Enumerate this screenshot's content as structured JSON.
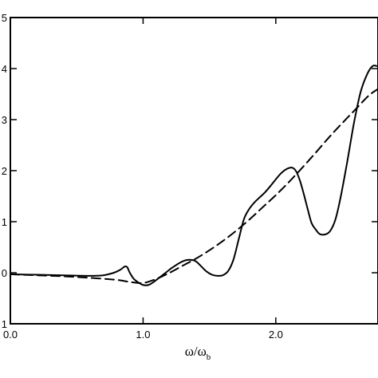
{
  "chart_data": {
    "type": "line",
    "title": "",
    "xlabel": "ω/ω",
    "xlabel_subscript": "b",
    "ylabel": "",
    "xlim": [
      0.0,
      2.77
    ],
    "ylim": [
      -1.0,
      5.0
    ],
    "x_ticks": [
      {
        "value": 0.0,
        "label": "0.0"
      },
      {
        "value": 1.0,
        "label": "1.0"
      },
      {
        "value": 2.0,
        "label": "2.0"
      }
    ],
    "y_ticks": [
      {
        "value": 5,
        "label": "5"
      },
      {
        "value": 4,
        "label": "4"
      },
      {
        "value": 3,
        "label": "3"
      },
      {
        "value": 2,
        "label": "2"
      },
      {
        "value": 1,
        "label": "1"
      },
      {
        "value": 0,
        "label": "0"
      },
      {
        "value": -1,
        "label": "1"
      }
    ],
    "grid": false,
    "legend": "none",
    "series": [
      {
        "style": "solid",
        "color": "#000000",
        "x": [
          0.0,
          0.2,
          0.4,
          0.6,
          0.7,
          0.78,
          0.83,
          0.86,
          0.88,
          0.9,
          0.93,
          0.97,
          1.0,
          1.04,
          1.08,
          1.12,
          1.17,
          1.22,
          1.28,
          1.33,
          1.37,
          1.4,
          1.44,
          1.48,
          1.52,
          1.56,
          1.6,
          1.64,
          1.68,
          1.72,
          1.76,
          1.8,
          1.84,
          1.88,
          1.92,
          1.96,
          2.0,
          2.04,
          2.08,
          2.12,
          2.15,
          2.18,
          2.21,
          2.24,
          2.27,
          2.3,
          2.33,
          2.37,
          2.41,
          2.45,
          2.49,
          2.54,
          2.59,
          2.64,
          2.69,
          2.73,
          2.76
        ],
        "y": [
          -0.03,
          -0.04,
          -0.05,
          -0.06,
          -0.05,
          0.0,
          0.06,
          0.12,
          0.11,
          0.0,
          -0.12,
          -0.2,
          -0.24,
          -0.24,
          -0.18,
          -0.1,
          0.0,
          0.1,
          0.2,
          0.25,
          0.25,
          0.22,
          0.12,
          0.02,
          -0.04,
          -0.06,
          -0.05,
          0.03,
          0.25,
          0.65,
          1.05,
          1.25,
          1.38,
          1.48,
          1.58,
          1.7,
          1.83,
          1.95,
          2.03,
          2.06,
          2.0,
          1.82,
          1.55,
          1.25,
          0.97,
          0.85,
          0.76,
          0.75,
          0.82,
          1.05,
          1.5,
          2.2,
          2.95,
          3.55,
          3.9,
          4.05,
          4.05
        ]
      },
      {
        "style": "dashed",
        "color": "#000000",
        "x": [
          0.0,
          0.2,
          0.4,
          0.6,
          0.8,
          0.9,
          1.0,
          1.1,
          1.2,
          1.3,
          1.4,
          1.5,
          1.6,
          1.7,
          1.8,
          1.9,
          2.0,
          2.1,
          2.2,
          2.3,
          2.4,
          2.5,
          2.6,
          2.7,
          2.77
        ],
        "y": [
          -0.03,
          -0.05,
          -0.07,
          -0.1,
          -0.14,
          -0.18,
          -0.2,
          -0.12,
          0.0,
          0.14,
          0.28,
          0.44,
          0.62,
          0.82,
          1.04,
          1.28,
          1.52,
          1.78,
          2.06,
          2.35,
          2.65,
          2.93,
          3.2,
          3.47,
          3.6
        ]
      }
    ]
  }
}
